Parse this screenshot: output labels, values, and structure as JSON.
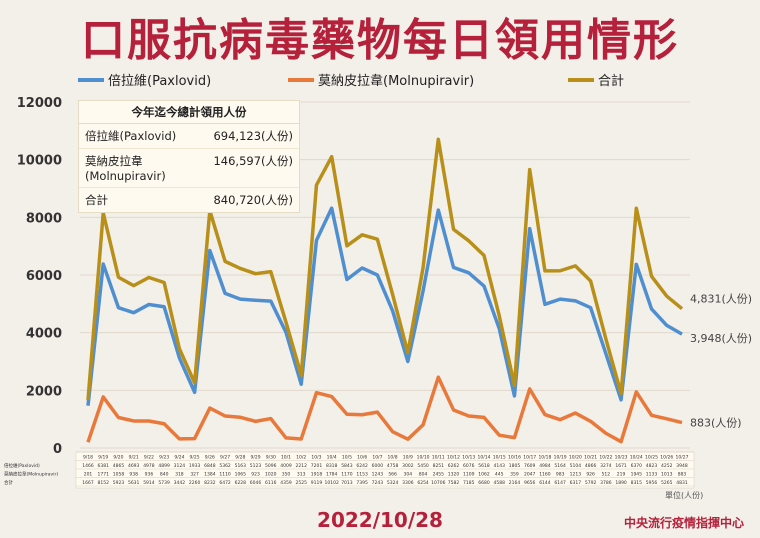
{
  "title": "口服抗病毒藥物每日領用情形",
  "date": "2022/10/28",
  "source": "中央流行疫情指揮中心",
  "unit": "單位(人份)",
  "summary": {
    "heading": "今年迄今總計領用人份",
    "rows": [
      {
        "name": "倍拉維(Paxlovid)",
        "value": "694,123(人份)"
      },
      {
        "name": "莫納皮拉韋(Molnupiravir)",
        "value": "146,597(人份)"
      },
      {
        "name": "合計",
        "value": "840,720(人份)"
      }
    ]
  },
  "end_labels": {
    "total": "4,831(人份)",
    "paxlovid": "3,948(人份)",
    "molnupiravir": "883(人份)"
  },
  "table_row_labels": [
    "倍拉維(Paxlovid)",
    "莫納皮拉韋(Molnupiravir)",
    "合計"
  ],
  "chart_data": {
    "type": "line",
    "ylim": [
      0,
      12000
    ],
    "yticks": [
      0,
      2000,
      4000,
      6000,
      8000,
      10000,
      12000
    ],
    "x": [
      "9/18",
      "9/19",
      "9/20",
      "9/21",
      "9/22",
      "9/23",
      "9/24",
      "9/25",
      "9/26",
      "9/27",
      "9/28",
      "9/29",
      "9/30",
      "10/1",
      "10/2",
      "10/3",
      "10/4",
      "10/5",
      "10/6",
      "10/7",
      "10/8",
      "10/9",
      "10/10",
      "10/11",
      "10/12",
      "10/13",
      "10/14",
      "10/15",
      "10/16",
      "10/17",
      "10/18",
      "10/19",
      "10/20",
      "10/21",
      "10/22",
      "10/23",
      "10/24",
      "10/25",
      "10/26",
      "10/27"
    ],
    "series": [
      {
        "name": "倍拉維(Paxlovid)",
        "color": "#4f8fd0",
        "values": [
          1466,
          6381,
          4865,
          4693,
          4978,
          4899,
          3124,
          1933,
          6848,
          5362,
          5163,
          5123,
          5096,
          4009,
          2212,
          7201,
          8318,
          5843,
          6242,
          6000,
          4758,
          3002,
          5450,
          8251,
          6262,
          6076,
          5618,
          4143,
          1805,
          7609,
          4984,
          5164,
          5104,
          4866,
          3274,
          1671,
          6370,
          4823,
          4252,
          3948
        ]
      },
      {
        "name": "莫納皮拉韋(Molnupiravir)",
        "color": "#e8793a",
        "values": [
          201,
          1771,
          1058,
          938,
          936,
          840,
          318,
          327,
          1384,
          1110,
          1065,
          923,
          1020,
          350,
          313,
          1918,
          1784,
          1170,
          1153,
          1243,
          566,
          304,
          804,
          2455,
          1320,
          1109,
          1062,
          445,
          359,
          2047,
          1160,
          983,
          1213,
          926,
          512,
          219,
          1945,
          1133,
          1013,
          883
        ]
      },
      {
        "name": "合計",
        "color": "#b89019",
        "values": [
          1667,
          8152,
          5923,
          5631,
          5914,
          5739,
          3442,
          2260,
          8232,
          6472,
          6228,
          6046,
          6116,
          4359,
          2525,
          9119,
          10102,
          7013,
          7395,
          7243,
          5324,
          3306,
          6254,
          10706,
          7582,
          7185,
          6680,
          4588,
          2164,
          9656,
          6144,
          6147,
          6317,
          5792,
          3786,
          1890,
          8315,
          5956,
          5265,
          4831
        ]
      }
    ]
  }
}
